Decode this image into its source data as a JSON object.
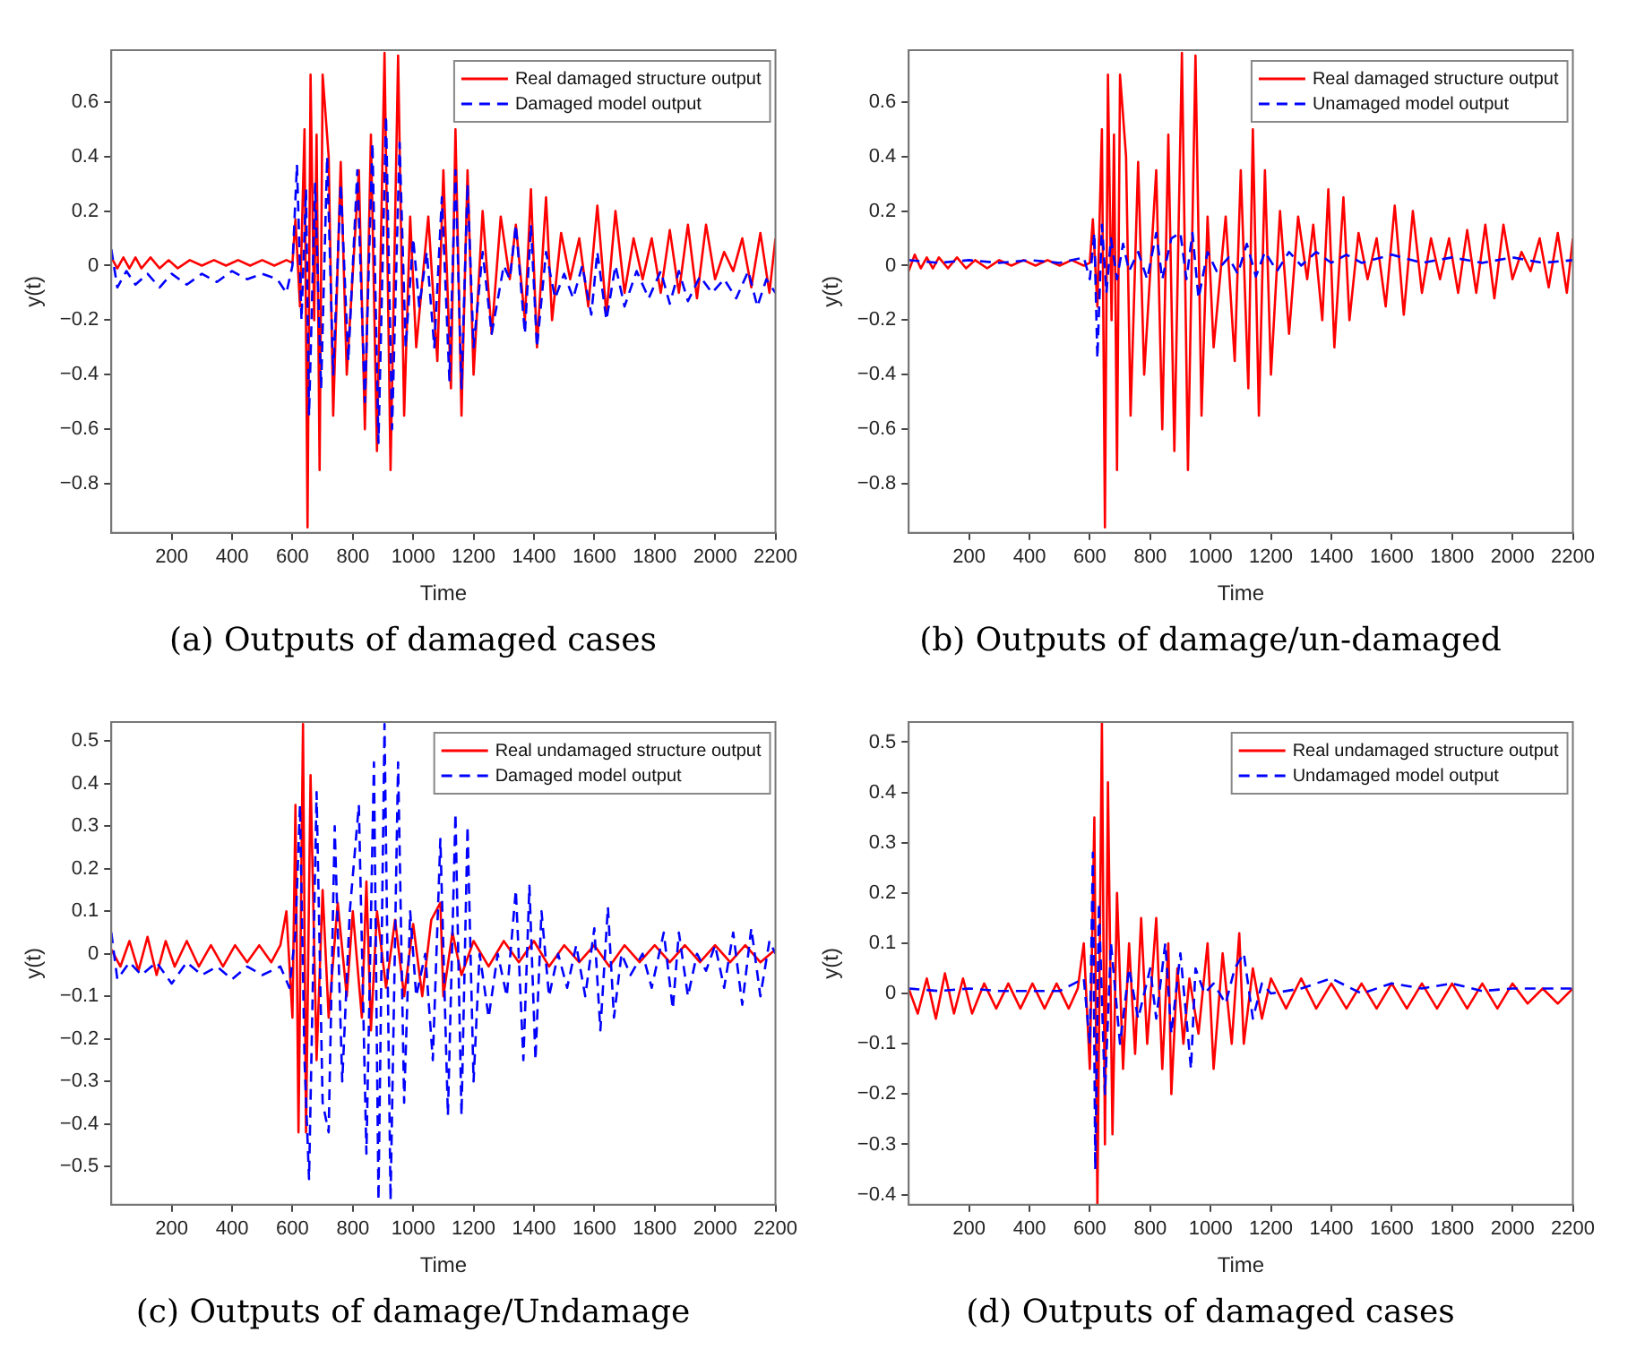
{
  "chart_data": [
    {
      "type": "line",
      "title": "(a) Outputs of damaged cases",
      "xlabel": "Time",
      "ylabel": "y(t)",
      "legend": "top right",
      "grid": false,
      "marker": "none",
      "xlim": [
        0,
        2200
      ],
      "xticks": [
        200,
        400,
        600,
        800,
        1000,
        1200,
        1400,
        1600,
        1800,
        2000,
        2200
      ],
      "ylim": [
        -0.98,
        0.79
      ],
      "yticks": [
        {
          "value": -0.8,
          "label": "−0.8"
        },
        {
          "value": -0.6,
          "label": "−0.6"
        },
        {
          "value": -0.4,
          "label": "−0.4"
        },
        {
          "value": -0.2,
          "label": "−0.2"
        },
        0,
        0.2,
        0.4,
        0.6
      ],
      "series": [
        {
          "name": "Real damaged structure output",
          "color": "#ff0000",
          "line_style": "solid",
          "x": [
            0,
            20,
            40,
            60,
            80,
            100,
            130,
            160,
            190,
            220,
            260,
            300,
            340,
            380,
            420,
            460,
            500,
            540,
            580,
            600,
            610,
            625,
            640,
            650,
            660,
            672,
            680,
            690,
            700,
            720,
            735,
            760,
            780,
            820,
            840,
            860,
            880,
            905,
            925,
            950,
            970,
            990,
            1010,
            1050,
            1080,
            1100,
            1125,
            1140,
            1160,
            1180,
            1200,
            1230,
            1260,
            1290,
            1320,
            1340,
            1370,
            1390,
            1410,
            1440,
            1460,
            1490,
            1520,
            1550,
            1580,
            1610,
            1640,
            1670,
            1700,
            1730,
            1760,
            1790,
            1820,
            1850,
            1880,
            1910,
            1940,
            1970,
            2000,
            2030,
            2060,
            2090,
            2120,
            2150,
            2180,
            2200
          ],
          "values": [
            0.03,
            -0.01,
            0.03,
            -0.01,
            0.03,
            -0.01,
            0.03,
            -0.01,
            0.02,
            -0.01,
            0.02,
            0,
            0.02,
            0,
            0.02,
            0,
            0.02,
            0,
            0.02,
            0.01,
            0.17,
            -0.15,
            0.5,
            -0.96,
            0.7,
            -0.2,
            0.48,
            -0.75,
            0.7,
            0.4,
            -0.55,
            0.38,
            -0.4,
            0.35,
            -0.6,
            0.48,
            -0.68,
            0.78,
            -0.75,
            0.77,
            -0.55,
            0.18,
            -0.3,
            0.18,
            -0.35,
            0.35,
            -0.45,
            0.5,
            -0.55,
            0.35,
            -0.4,
            0.2,
            -0.25,
            0.18,
            -0.05,
            0.15,
            -0.2,
            0.28,
            -0.3,
            0.25,
            -0.2,
            0.12,
            -0.05,
            0.1,
            -0.15,
            0.22,
            -0.18,
            0.2,
            -0.1,
            0.1,
            -0.05,
            0.1,
            -0.1,
            0.13,
            -0.1,
            0.15,
            -0.12,
            0.15,
            -0.05,
            0.05,
            -0.02,
            0.1,
            -0.08,
            0.12,
            -0.1,
            0.1
          ]
        },
        {
          "name": "Damaged model output",
          "color": "#0000ff",
          "line_style": "dashed",
          "x": [
            0,
            20,
            50,
            80,
            120,
            160,
            200,
            250,
            300,
            350,
            400,
            450,
            500,
            550,
            580,
            600,
            615,
            630,
            645,
            655,
            675,
            695,
            715,
            735,
            760,
            785,
            815,
            840,
            865,
            885,
            910,
            930,
            955,
            975,
            1000,
            1020,
            1045,
            1070,
            1095,
            1120,
            1140,
            1160,
            1180,
            1200,
            1230,
            1260,
            1300,
            1320,
            1340,
            1370,
            1390,
            1410,
            1440,
            1470,
            1500,
            1530,
            1560,
            1590,
            1610,
            1640,
            1670,
            1700,
            1740,
            1780,
            1820,
            1850,
            1880,
            1910,
            1950,
            1990,
            2030,
            2070,
            2110,
            2140,
            2170,
            2200
          ],
          "values": [
            0.06,
            -0.08,
            -0.02,
            -0.07,
            -0.03,
            -0.08,
            -0.03,
            -0.07,
            -0.03,
            -0.06,
            -0.02,
            -0.05,
            -0.03,
            -0.05,
            -0.1,
            0,
            0.37,
            -0.2,
            0.28,
            -0.55,
            0.3,
            -0.45,
            0.4,
            -0.4,
            0.3,
            -0.35,
            0.35,
            -0.5,
            0.45,
            -0.65,
            0.55,
            -0.6,
            0.45,
            -0.3,
            0.1,
            -0.15,
            0.05,
            -0.3,
            0.25,
            -0.42,
            0.35,
            -0.45,
            0.3,
            -0.3,
            0.05,
            -0.25,
            0,
            -0.05,
            0.15,
            -0.25,
            0.15,
            -0.3,
            0.05,
            -0.12,
            -0.03,
            -0.12,
            0,
            -0.18,
            0.05,
            -0.2,
            0,
            -0.15,
            -0.02,
            -0.12,
            -0.02,
            -0.14,
            -0.02,
            -0.13,
            -0.04,
            -0.1,
            -0.05,
            -0.12,
            -0.02,
            -0.15,
            -0.05,
            -0.1
          ]
        }
      ]
    },
    {
      "type": "line",
      "title": "(b) Outputs of damage/un-damaged",
      "xlabel": "Time",
      "ylabel": "y(t)",
      "legend": "top right",
      "grid": false,
      "marker": "none",
      "xlim": [
        0,
        2200
      ],
      "xticks": [
        200,
        400,
        600,
        800,
        1000,
        1200,
        1400,
        1600,
        1800,
        2000,
        2200
      ],
      "ylim": [
        -0.98,
        0.79
      ],
      "yticks": [
        {
          "value": -0.8,
          "label": "−0.8"
        },
        {
          "value": -0.6,
          "label": "−0.6"
        },
        {
          "value": -0.4,
          "label": "−0.4"
        },
        {
          "value": -0.2,
          "label": "−0.2"
        },
        0,
        0.2,
        0.4,
        0.6
      ],
      "series": [
        {
          "name": "Real damaged structure output",
          "color": "#ff0000",
          "line_style": "solid",
          "x": [
            0,
            20,
            40,
            60,
            80,
            100,
            130,
            160,
            190,
            220,
            260,
            300,
            340,
            380,
            420,
            460,
            500,
            540,
            580,
            600,
            610,
            625,
            640,
            650,
            660,
            672,
            680,
            690,
            700,
            720,
            735,
            760,
            780,
            820,
            840,
            860,
            880,
            905,
            925,
            950,
            970,
            990,
            1010,
            1050,
            1080,
            1100,
            1125,
            1140,
            1160,
            1180,
            1200,
            1230,
            1260,
            1290,
            1320,
            1340,
            1370,
            1390,
            1410,
            1440,
            1460,
            1490,
            1520,
            1550,
            1580,
            1610,
            1640,
            1670,
            1700,
            1730,
            1760,
            1790,
            1820,
            1850,
            1880,
            1910,
            1940,
            1970,
            2000,
            2030,
            2060,
            2090,
            2120,
            2150,
            2180,
            2200
          ],
          "values": [
            -0.02,
            0.04,
            -0.01,
            0.03,
            -0.01,
            0.03,
            -0.01,
            0.03,
            -0.01,
            0.02,
            -0.01,
            0.02,
            0,
            0.02,
            0,
            0.02,
            0,
            0.02,
            0,
            0.01,
            0.17,
            -0.15,
            0.5,
            -0.96,
            0.7,
            -0.2,
            0.48,
            -0.75,
            0.7,
            0.4,
            -0.55,
            0.38,
            -0.4,
            0.35,
            -0.6,
            0.48,
            -0.68,
            0.78,
            -0.75,
            0.77,
            -0.55,
            0.18,
            -0.3,
            0.18,
            -0.35,
            0.35,
            -0.45,
            0.5,
            -0.55,
            0.35,
            -0.4,
            0.2,
            -0.25,
            0.18,
            -0.05,
            0.15,
            -0.2,
            0.28,
            -0.3,
            0.25,
            -0.2,
            0.12,
            -0.05,
            0.1,
            -0.15,
            0.22,
            -0.18,
            0.2,
            -0.1,
            0.1,
            -0.05,
            0.1,
            -0.1,
            0.13,
            -0.1,
            0.15,
            -0.12,
            0.15,
            -0.05,
            0.05,
            -0.02,
            0.1,
            -0.08,
            0.12,
            -0.1,
            0.1
          ]
        },
        {
          "name": "Unamaged model output",
          "color": "#0000ff",
          "line_style": "dashed",
          "x": [
            0,
            100,
            200,
            300,
            400,
            500,
            580,
            600,
            615,
            625,
            640,
            655,
            670,
            690,
            710,
            730,
            760,
            790,
            820,
            840,
            870,
            900,
            920,
            940,
            960,
            990,
            1020,
            1060,
            1090,
            1120,
            1150,
            1180,
            1220,
            1260,
            1300,
            1350,
            1400,
            1450,
            1500,
            1600,
            1700,
            1800,
            1900,
            2000,
            2100,
            2200
          ],
          "values": [
            0.02,
            0.01,
            0.02,
            0.01,
            0.02,
            0.01,
            0.03,
            -0.05,
            0.12,
            -0.34,
            0.15,
            -0.1,
            0.1,
            -0.05,
            0.08,
            -0.02,
            0.05,
            -0.05,
            0.12,
            -0.05,
            0.1,
            0.12,
            -0.05,
            0.12,
            -0.12,
            0.05,
            -0.02,
            0.03,
            -0.03,
            0.08,
            -0.04,
            0.05,
            -0.02,
            0.05,
            0,
            0.05,
            0.01,
            0.04,
            0.01,
            0.04,
            0.01,
            0.03,
            0.01,
            0.03,
            0.01,
            0.02
          ]
        }
      ]
    },
    {
      "type": "line",
      "title": "(c) Outputs of damage/Undamage",
      "xlabel": "Time",
      "ylabel": "y(t)",
      "legend": "top right",
      "grid": false,
      "marker": "none",
      "xlim": [
        0,
        2200
      ],
      "xticks": [
        200,
        400,
        600,
        800,
        1000,
        1200,
        1400,
        1600,
        1800,
        2000,
        2200
      ],
      "ylim": [
        -0.59,
        0.545
      ],
      "yticks": [
        {
          "value": -0.5,
          "label": "−0.5"
        },
        {
          "value": -0.4,
          "label": "−0.4"
        },
        {
          "value": -0.3,
          "label": "−0.3"
        },
        {
          "value": -0.2,
          "label": "−0.2"
        },
        {
          "value": -0.1,
          "label": "−0.1"
        },
        0,
        0.1,
        0.2,
        0.3,
        0.4,
        0.5
      ],
      "series": [
        {
          "name": "Real undamaged structure output",
          "color": "#ff0000",
          "line_style": "solid",
          "x": [
            0,
            30,
            60,
            90,
            120,
            150,
            180,
            210,
            250,
            290,
            330,
            370,
            410,
            450,
            490,
            530,
            560,
            580,
            600,
            610,
            620,
            635,
            645,
            660,
            680,
            700,
            720,
            750,
            780,
            800,
            830,
            845,
            860,
            880,
            910,
            940,
            970,
            1000,
            1030,
            1060,
            1090,
            1100,
            1130,
            1160,
            1200,
            1250,
            1300,
            1350,
            1400,
            1450,
            1500,
            1550,
            1600,
            1650,
            1700,
            1750,
            1800,
            1850,
            1900,
            1950,
            2000,
            2050,
            2100,
            2150,
            2200
          ],
          "values": [
            0.01,
            -0.03,
            0.03,
            -0.04,
            0.04,
            -0.05,
            0.03,
            -0.03,
            0.03,
            -0.03,
            0.02,
            -0.03,
            0.02,
            -0.02,
            0.02,
            -0.02,
            0.02,
            0.1,
            -0.15,
            0.35,
            -0.42,
            0.54,
            -0.42,
            0.42,
            -0.25,
            0.15,
            -0.15,
            0.12,
            -0.1,
            0.1,
            -0.15,
            0.17,
            -0.18,
            0.1,
            -0.08,
            0.08,
            -0.1,
            0.07,
            -0.1,
            0.08,
            0.12,
            -0.1,
            0.05,
            -0.05,
            0.03,
            -0.03,
            0.03,
            -0.02,
            0.03,
            -0.03,
            0.02,
            -0.02,
            0.02,
            -0.03,
            0.02,
            -0.02,
            0.02,
            -0.02,
            0.02,
            -0.02,
            0.02,
            -0.02,
            0.02,
            -0.02,
            0.01
          ]
        },
        {
          "name": "Damaged model output",
          "color": "#0000ff",
          "line_style": "dashed",
          "x": [
            0,
            20,
            60,
            100,
            150,
            200,
            250,
            300,
            350,
            400,
            450,
            500,
            560,
            590,
            610,
            625,
            640,
            655,
            680,
            700,
            720,
            740,
            765,
            790,
            820,
            845,
            870,
            885,
            905,
            925,
            950,
            970,
            990,
            1010,
            1040,
            1065,
            1090,
            1115,
            1140,
            1160,
            1180,
            1200,
            1220,
            1250,
            1280,
            1310,
            1340,
            1365,
            1385,
            1405,
            1425,
            1450,
            1480,
            1510,
            1540,
            1570,
            1600,
            1620,
            1645,
            1665,
            1690,
            1720,
            1760,
            1790,
            1830,
            1860,
            1880,
            1910,
            1940,
            1970,
            2000,
            2030,
            2060,
            2090,
            2120,
            2150,
            2180,
            2200
          ],
          "values": [
            0.05,
            -0.06,
            -0.02,
            -0.05,
            -0.02,
            -0.07,
            -0.02,
            -0.05,
            -0.03,
            -0.06,
            -0.03,
            -0.05,
            -0.03,
            -0.08,
            0.05,
            0.35,
            -0.25,
            -0.53,
            0.38,
            -0.35,
            -0.42,
            0.3,
            -0.3,
            0.1,
            0.35,
            -0.47,
            0.45,
            -0.58,
            0.54,
            -0.58,
            0.45,
            -0.35,
            0.1,
            -0.1,
            0,
            -0.25,
            0.27,
            -0.38,
            0.33,
            -0.38,
            0.3,
            -0.3,
            0,
            -0.15,
            0,
            -0.1,
            0.15,
            -0.25,
            0.16,
            -0.25,
            0.1,
            -0.1,
            0,
            -0.08,
            0.02,
            -0.1,
            0.06,
            -0.18,
            0.11,
            -0.15,
            0,
            -0.05,
            0,
            -0.08,
            0.05,
            -0.13,
            0.05,
            -0.1,
            0,
            -0.04,
            0.02,
            -0.08,
            0.05,
            -0.12,
            0.06,
            -0.1,
            0.03,
            0
          ]
        }
      ]
    },
    {
      "type": "line",
      "title": "(d) Outputs of damaged cases",
      "xlabel": "Time",
      "ylabel": "y(t)",
      "legend": "top right",
      "grid": false,
      "marker": "none",
      "xlim": [
        0,
        2200
      ],
      "xticks": [
        200,
        400,
        600,
        800,
        1000,
        1200,
        1400,
        1600,
        1800,
        2000,
        2200
      ],
      "ylim": [
        -0.42,
        0.54
      ],
      "yticks": [
        {
          "value": -0.4,
          "label": "−0.4"
        },
        {
          "value": -0.3,
          "label": "−0.3"
        },
        {
          "value": -0.2,
          "label": "−0.2"
        },
        {
          "value": -0.1,
          "label": "−0.1"
        },
        0,
        0.1,
        0.2,
        0.3,
        0.4,
        0.5
      ],
      "series": [
        {
          "name": "Real undamaged structure output",
          "color": "#ff0000",
          "line_style": "solid",
          "x": [
            0,
            30,
            60,
            90,
            120,
            150,
            180,
            210,
            250,
            290,
            330,
            370,
            410,
            450,
            490,
            530,
            560,
            580,
            600,
            615,
            625,
            640,
            650,
            660,
            675,
            690,
            710,
            730,
            750,
            770,
            790,
            820,
            840,
            860,
            870,
            890,
            910,
            930,
            960,
            990,
            1010,
            1040,
            1070,
            1095,
            1110,
            1140,
            1170,
            1200,
            1250,
            1300,
            1350,
            1400,
            1450,
            1500,
            1550,
            1600,
            1650,
            1700,
            1750,
            1800,
            1850,
            1900,
            1950,
            2000,
            2050,
            2100,
            2150,
            2200
          ],
          "values": [
            0.01,
            -0.04,
            0.03,
            -0.05,
            0.04,
            -0.04,
            0.03,
            -0.04,
            0.02,
            -0.03,
            0.02,
            -0.03,
            0.02,
            -0.03,
            0.02,
            -0.03,
            0.01,
            0.1,
            -0.15,
            0.35,
            -0.42,
            0.54,
            -0.3,
            0.42,
            -0.28,
            0.2,
            -0.15,
            0.1,
            -0.12,
            0.15,
            -0.1,
            0.15,
            -0.15,
            0.1,
            -0.2,
            0.05,
            -0.1,
            0.03,
            -0.08,
            0.1,
            -0.15,
            0.08,
            -0.1,
            0.12,
            -0.1,
            0.05,
            -0.05,
            0.03,
            -0.03,
            0.03,
            -0.03,
            0.02,
            -0.03,
            0.02,
            -0.03,
            0.02,
            -0.03,
            0.02,
            -0.03,
            0.02,
            -0.03,
            0.02,
            -0.03,
            0.02,
            -0.02,
            0.01,
            -0.02,
            0.01
          ]
        },
        {
          "name": "Undamaged model output",
          "color": "#0000ff",
          "line_style": "dashed",
          "x": [
            0,
            100,
            200,
            300,
            400,
            500,
            580,
            600,
            610,
            618,
            630,
            650,
            670,
            700,
            730,
            760,
            800,
            820,
            850,
            870,
            900,
            920,
            935,
            950,
            980,
            1010,
            1050,
            1080,
            1110,
            1140,
            1170,
            1200,
            1300,
            1400,
            1500,
            1600,
            1700,
            1800,
            1900,
            2000,
            2100,
            2200
          ],
          "values": [
            0.01,
            0.005,
            0.01,
            0.005,
            0.005,
            0.005,
            0.03,
            -0.1,
            0.28,
            -0.35,
            0.18,
            -0.2,
            0.1,
            -0.1,
            0.05,
            -0.05,
            0.05,
            -0.05,
            0.1,
            -0.08,
            0.08,
            -0.05,
            -0.15,
            0.05,
            0,
            0.02,
            -0.02,
            0.05,
            0.08,
            -0.05,
            0.02,
            0,
            0.01,
            0.03,
            0,
            0.02,
            0.01,
            0.02,
            0.005,
            0.01,
            0.01,
            0.01
          ]
        }
      ]
    }
  ]
}
